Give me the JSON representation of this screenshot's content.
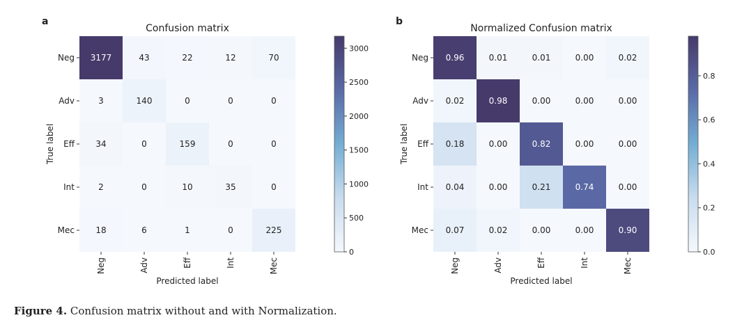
{
  "caption": {
    "label": "Figure 4.",
    "text": " Confusion matrix without and with Normalization."
  },
  "chart_data": [
    {
      "type": "heatmap",
      "panel": "a",
      "title": "Confusion matrix",
      "xlabel": "Predicted label",
      "ylabel": "True label",
      "x_categories": [
        "Neg",
        "Adv",
        "Eff",
        "Int",
        "Mec"
      ],
      "y_categories": [
        "Neg",
        "Adv",
        "Eff",
        "Int",
        "Mec"
      ],
      "values": [
        [
          3177,
          43,
          22,
          12,
          70
        ],
        [
          3,
          140,
          0,
          0,
          0
        ],
        [
          34,
          0,
          159,
          0,
          0
        ],
        [
          2,
          0,
          10,
          35,
          0
        ],
        [
          18,
          6,
          1,
          0,
          225
        ]
      ],
      "value_labels": [
        [
          "3177",
          "43",
          "22",
          "12",
          "70"
        ],
        [
          "3",
          "140",
          "0",
          "0",
          "0"
        ],
        [
          "34",
          "0",
          "159",
          "0",
          "0"
        ],
        [
          "2",
          "0",
          "10",
          "35",
          "0"
        ],
        [
          "18",
          "6",
          "1",
          "0",
          "225"
        ]
      ],
      "colorbar": {
        "range": [
          0,
          3177
        ],
        "ticks": [
          0,
          500,
          1000,
          1500,
          2000,
          2500,
          3000
        ],
        "tick_labels": [
          "0",
          "500",
          "1000",
          "1500",
          "2000",
          "2500",
          "3000"
        ]
      },
      "colormap": "light-to-dark slate blue"
    },
    {
      "type": "heatmap",
      "panel": "b",
      "title": "Normalized Confusion matrix",
      "xlabel": "Predicted label",
      "ylabel": "True label",
      "x_categories": [
        "Neg",
        "Adv",
        "Eff",
        "Int",
        "Mec"
      ],
      "y_categories": [
        "Neg",
        "Adv",
        "Eff",
        "Int",
        "Mec"
      ],
      "values": [
        [
          0.96,
          0.01,
          0.01,
          0.0,
          0.02
        ],
        [
          0.02,
          0.98,
          0.0,
          0.0,
          0.0
        ],
        [
          0.18,
          0.0,
          0.82,
          0.0,
          0.0
        ],
        [
          0.04,
          0.0,
          0.21,
          0.74,
          0.0
        ],
        [
          0.07,
          0.02,
          0.0,
          0.0,
          0.9
        ]
      ],
      "value_labels": [
        [
          "0.96",
          "0.01",
          "0.01",
          "0.00",
          "0.02"
        ],
        [
          "0.02",
          "0.98",
          "0.00",
          "0.00",
          "0.00"
        ],
        [
          "0.18",
          "0.00",
          "0.82",
          "0.00",
          "0.00"
        ],
        [
          "0.04",
          "0.00",
          "0.21",
          "0.74",
          "0.00"
        ],
        [
          "0.07",
          "0.02",
          "0.00",
          "0.00",
          "0.90"
        ]
      ],
      "colorbar": {
        "range": [
          0,
          0.98
        ],
        "ticks": [
          0,
          0.2,
          0.4,
          0.6,
          0.8
        ],
        "tick_labels": [
          "0.0",
          "0.2",
          "0.4",
          "0.6",
          "0.8"
        ]
      },
      "colormap": "light-to-dark slate blue"
    }
  ]
}
